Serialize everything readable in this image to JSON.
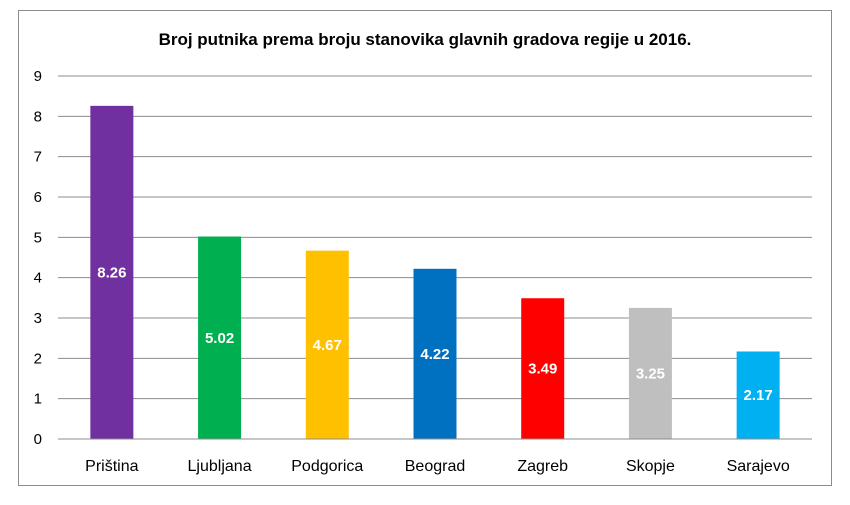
{
  "chart_data": {
    "type": "bar",
    "title": "Broj putnika prema broju stanovika glavnih gradova regije u 2016.",
    "xlabel": "",
    "ylabel": "",
    "ylim": [
      0,
      9
    ],
    "yticks": [
      "0",
      "1",
      "2",
      "3",
      "4",
      "5",
      "6",
      "7",
      "8",
      "9"
    ],
    "grid": true,
    "legend": "none",
    "categories": [
      "Priština",
      "Ljubljana",
      "Podgorica",
      "Beograd",
      "Zagreb",
      "Skopje",
      "Sarajevo"
    ],
    "values": [
      8.26,
      5.02,
      4.67,
      4.22,
      3.49,
      3.25,
      2.17
    ],
    "data_labels": [
      "8.26",
      "5.02",
      "4.67",
      "4.22",
      "3.49",
      "3.25",
      "2.17"
    ],
    "colors": [
      "#7030a0",
      "#00b050",
      "#ffc000",
      "#0070c0",
      "#ff0000",
      "#bfbfbf",
      "#00b0f0"
    ]
  }
}
